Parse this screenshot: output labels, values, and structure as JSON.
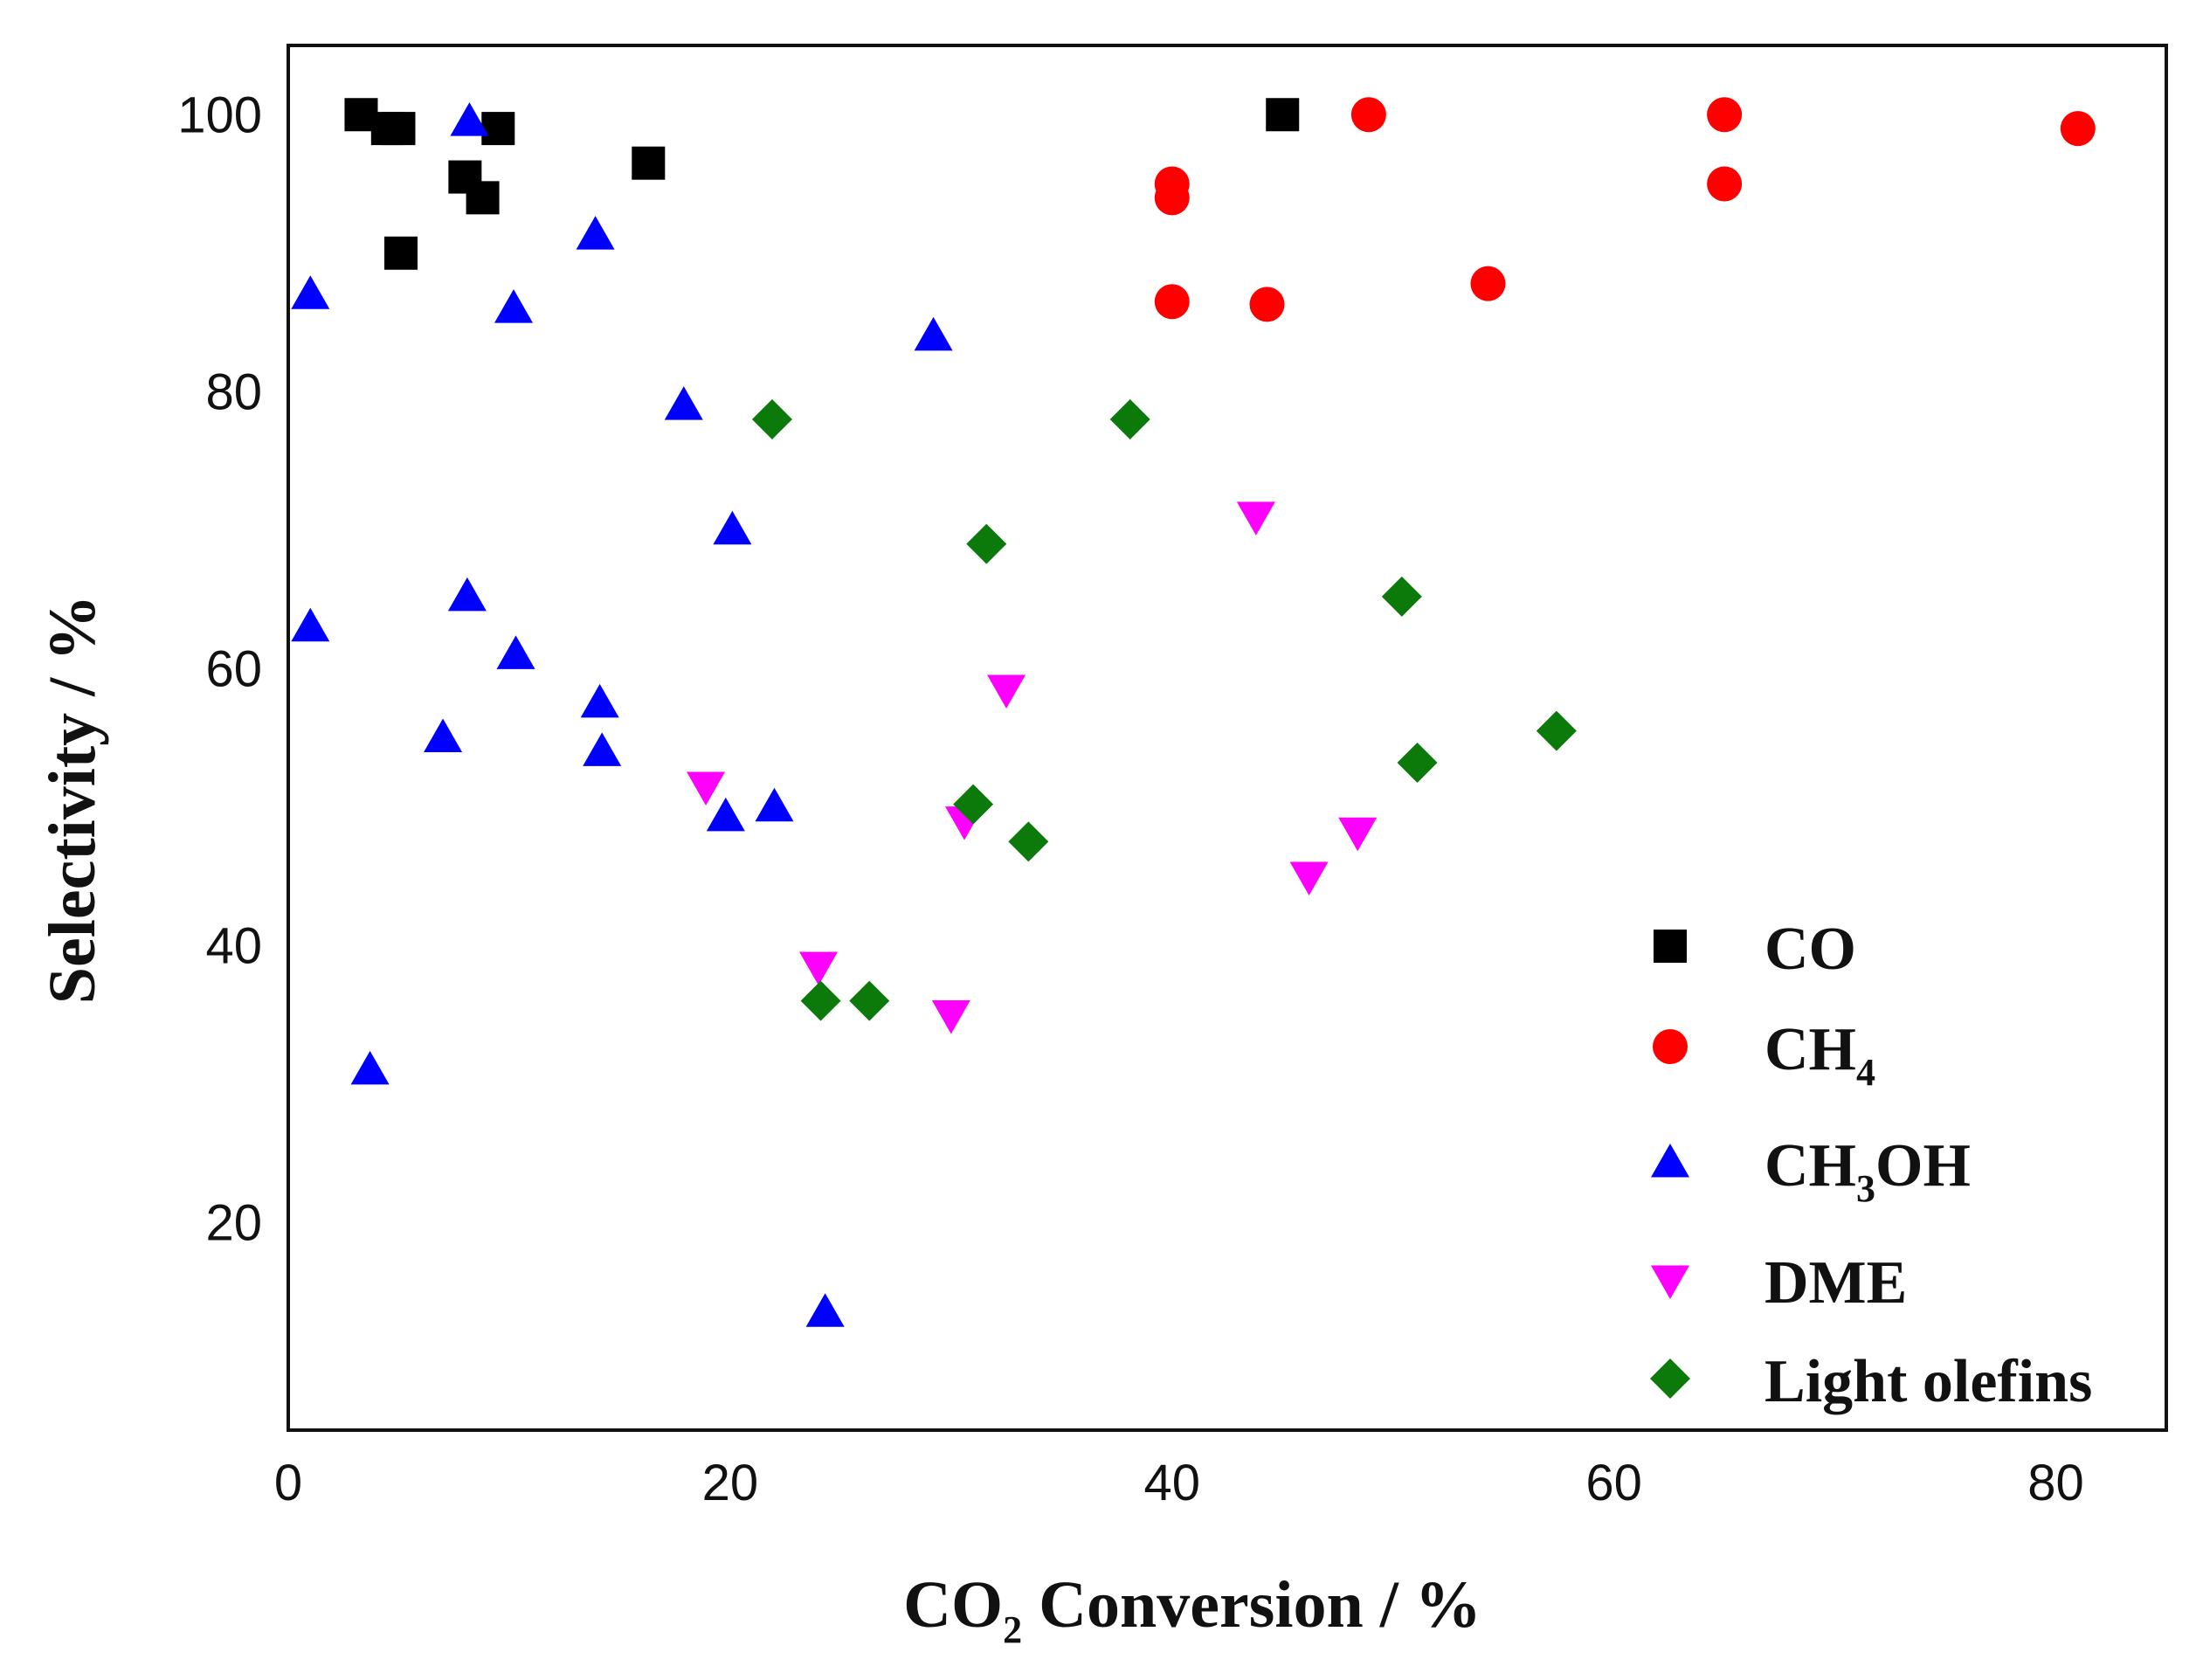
{
  "chart_data": {
    "type": "scatter",
    "title": "",
    "xlabel": {
      "main": "CO",
      "sub": "2",
      "rest": " Conversion / %"
    },
    "ylabel": "Selectivity / %",
    "xlim": [
      0,
      85
    ],
    "ylim": [
      5,
      105
    ],
    "xticks": [
      0,
      20,
      40,
      60,
      80
    ],
    "yticks": [
      20,
      40,
      60,
      80,
      100
    ],
    "grid": false,
    "legend_position": "bottom-right",
    "series": [
      {
        "name": "CO",
        "name_parts": [
          "CO"
        ],
        "marker": "square",
        "color": "#000000",
        "points": [
          [
            3.3,
            100
          ],
          [
            4.5,
            99
          ],
          [
            5.0,
            99
          ],
          [
            5.1,
            90
          ],
          [
            8.0,
            95.5
          ],
          [
            8.8,
            94
          ],
          [
            9.5,
            99
          ],
          [
            16.3,
            96.5
          ],
          [
            45.0,
            100
          ]
        ]
      },
      {
        "name": "CH4",
        "name_parts": [
          "CH",
          "4"
        ],
        "marker": "circle",
        "color": "#ff0000",
        "points": [
          [
            48.9,
            100
          ],
          [
            40.0,
            95
          ],
          [
            40.0,
            94
          ],
          [
            40.0,
            86.5
          ],
          [
            44.3,
            86.3
          ],
          [
            54.3,
            87.8
          ],
          [
            65.0,
            100
          ],
          [
            65.0,
            95
          ],
          [
            81.0,
            99
          ]
        ]
      },
      {
        "name": "CH3OH",
        "name_parts": [
          "CH",
          "3",
          "OH"
        ],
        "marker": "triangle-up",
        "color": "#0000ff",
        "points": [
          [
            1.0,
            87
          ],
          [
            1.0,
            63
          ],
          [
            3.7,
            31
          ],
          [
            7.0,
            55
          ],
          [
            8.1,
            65.2
          ],
          [
            8.2,
            99.5
          ],
          [
            10.2,
            86
          ],
          [
            10.3,
            61
          ],
          [
            13.9,
            91.3
          ],
          [
            14.1,
            57.5
          ],
          [
            14.2,
            54
          ],
          [
            17.9,
            79
          ],
          [
            19.8,
            49.3
          ],
          [
            20.1,
            70
          ],
          [
            22.0,
            50
          ],
          [
            24.3,
            13.5
          ],
          [
            29.2,
            84
          ]
        ]
      },
      {
        "name": "DME",
        "name_parts": [
          "DME"
        ],
        "marker": "triangle-down",
        "color": "#ff00ff",
        "points": [
          [
            18.9,
            51.5
          ],
          [
            24.0,
            38.5
          ],
          [
            30.0,
            35
          ],
          [
            30.6,
            49
          ],
          [
            32.5,
            58.5
          ],
          [
            43.8,
            71
          ],
          [
            46.2,
            45
          ],
          [
            48.4,
            48.2
          ]
        ]
      },
      {
        "name": "Light olefins",
        "name_parts": [
          "Light olefins"
        ],
        "marker": "diamond",
        "color": "#0b7a0b",
        "points": [
          [
            21.9,
            78
          ],
          [
            24.1,
            36
          ],
          [
            26.3,
            36
          ],
          [
            31.0,
            50.2
          ],
          [
            31.6,
            69
          ],
          [
            33.5,
            47.5
          ],
          [
            38.1,
            78
          ],
          [
            50.4,
            65.2
          ],
          [
            51.1,
            53.2
          ],
          [
            57.4,
            55.5
          ]
        ]
      }
    ]
  }
}
